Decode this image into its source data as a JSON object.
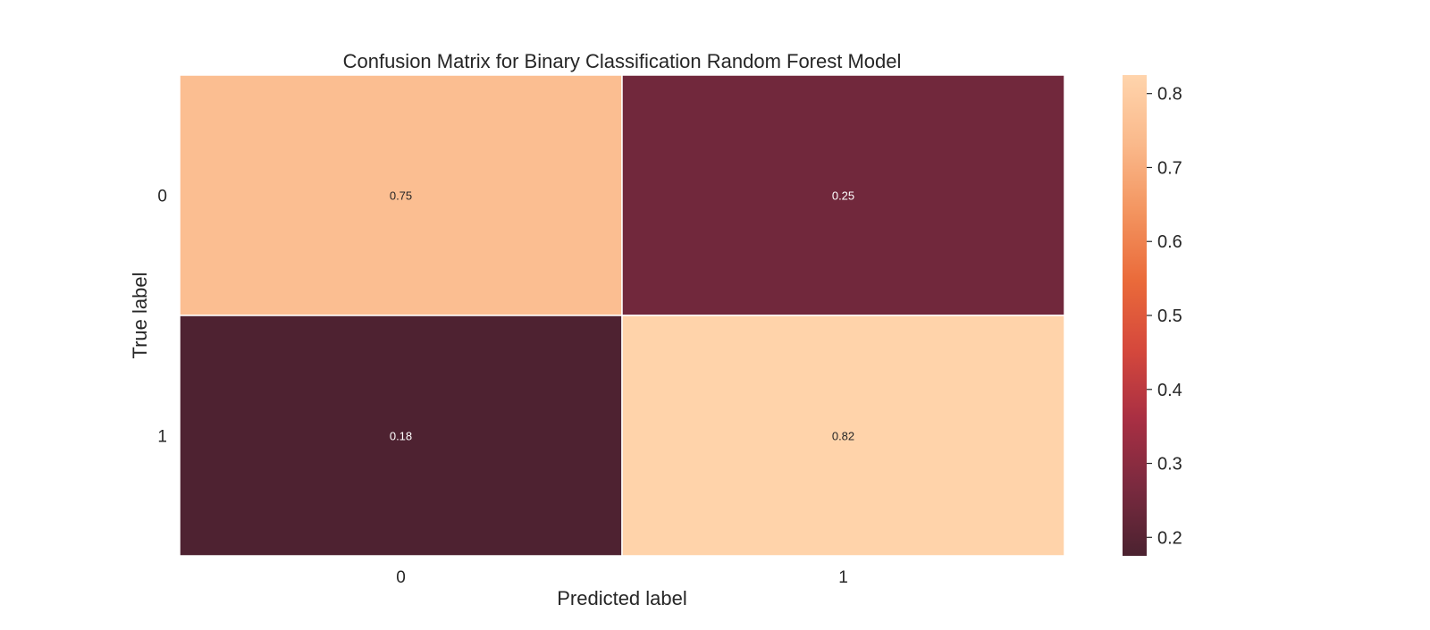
{
  "chart_data": {
    "type": "heatmap",
    "title": "Confusion Matrix for Binary Classification Random Forest Model",
    "xlabel": "Predicted label",
    "ylabel": "True label",
    "x_categories": [
      "0",
      "1"
    ],
    "y_categories": [
      "0",
      "1"
    ],
    "values": [
      [
        0.75,
        0.25
      ],
      [
        0.18,
        0.82
      ]
    ],
    "cell_labels": [
      [
        "0.75",
        "0.25"
      ],
      [
        "0.18",
        "0.82"
      ]
    ],
    "colorbar": {
      "range": [
        0.175,
        0.825
      ],
      "ticks": [
        0.2,
        0.3,
        0.4,
        0.5,
        0.6,
        0.7,
        0.8
      ],
      "tick_labels": [
        "0.2",
        "0.3",
        "0.4",
        "0.5",
        "0.6",
        "0.7",
        "0.8"
      ],
      "colormap": "rocket",
      "colormap_stops": [
        "#4b2230",
        "#7a2a3f",
        "#a92f43",
        "#d5483c",
        "#ea6a3a",
        "#f3945f",
        "#fab98b",
        "#ffd4ac"
      ]
    },
    "grid": false
  }
}
